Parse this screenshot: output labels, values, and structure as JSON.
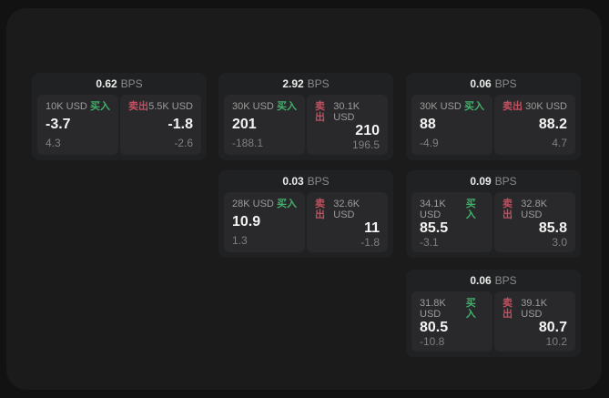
{
  "labels": {
    "bps_unit": "BPS",
    "buy": "买入",
    "sell": "卖出"
  },
  "colors": {
    "page_bg": "#121212",
    "panel_bg": "#1b1b1c",
    "card_bg": "#202122",
    "tile_bg": "#29292b",
    "buy_green": "#41b06a",
    "sell_red": "#c25060",
    "price_white": "#f4f4f4",
    "label_gray": "#9c9c9c"
  },
  "cards": [
    {
      "bps": "0.62",
      "buy": {
        "amount": "10K USD",
        "price": "-3.7",
        "delta": "4.3"
      },
      "sell": {
        "amount": "5.5K USD",
        "price": "-1.8",
        "delta": "-2.6"
      }
    },
    {
      "bps": "2.92",
      "buy": {
        "amount": "30K USD",
        "price": "201",
        "delta": "-188.1"
      },
      "sell": {
        "amount": "30.1K USD",
        "price": "210",
        "delta": "196.5"
      }
    },
    {
      "bps": "0.06",
      "buy": {
        "amount": "30K USD",
        "price": "88",
        "delta": "-4.9"
      },
      "sell": {
        "amount": "30K USD",
        "price": "88.2",
        "delta": "4.7"
      }
    },
    {
      "bps": "0.03",
      "buy": {
        "amount": "28K USD",
        "price": "10.9",
        "delta": "1.3"
      },
      "sell": {
        "amount": "32.6K USD",
        "price": "11",
        "delta": "-1.8"
      }
    },
    {
      "bps": "0.09",
      "buy": {
        "amount": "34.1K USD",
        "price": "85.5",
        "delta": "-3.1"
      },
      "sell": {
        "amount": "32.8K USD",
        "price": "85.8",
        "delta": "3.0"
      }
    },
    {
      "bps": "0.06",
      "buy": {
        "amount": "31.8K USD",
        "price": "80.5",
        "delta": "-10.8"
      },
      "sell": {
        "amount": "39.1K USD",
        "price": "80.7",
        "delta": "10.2"
      }
    }
  ]
}
